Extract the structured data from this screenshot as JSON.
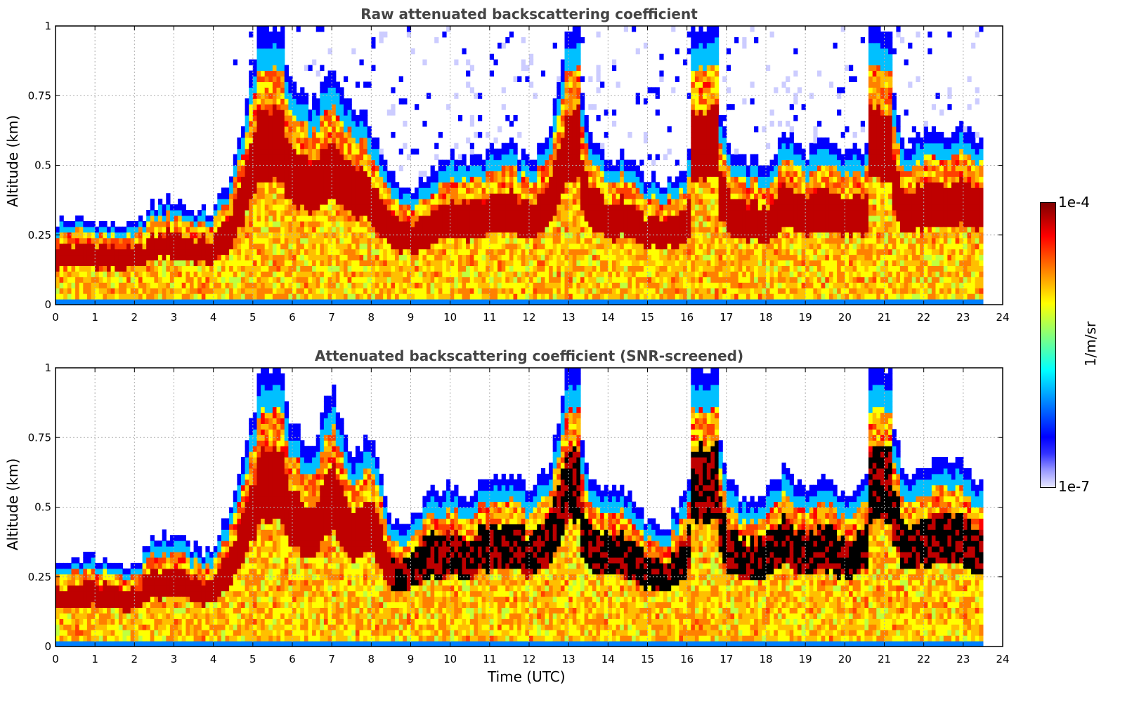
{
  "chart_data": [
    {
      "type": "heatmap",
      "title": "Raw attenuated backscattering coefficient",
      "xlabel": "",
      "ylabel": "Altitude (km)",
      "xlim": [
        0,
        24
      ],
      "ylim": [
        0,
        1
      ],
      "xticks": [
        "0",
        "1",
        "2",
        "3",
        "4",
        "5",
        "6",
        "7",
        "8",
        "9",
        "10",
        "11",
        "12",
        "13",
        "14",
        "15",
        "16",
        "17",
        "18",
        "19",
        "20",
        "21",
        "22",
        "23",
        "24"
      ],
      "yticks": [
        "0",
        "0.25",
        "0.5",
        "0.75",
        "1"
      ],
      "grid": true,
      "data_end_time": 23.5,
      "boundary_layer_top_km": [
        [
          0.0,
          0.3
        ],
        [
          0.5,
          0.31
        ],
        [
          1.0,
          0.3
        ],
        [
          1.5,
          0.29
        ],
        [
          2.0,
          0.28
        ],
        [
          2.5,
          0.36
        ],
        [
          3.0,
          0.38
        ],
        [
          3.5,
          0.34
        ],
        [
          4.0,
          0.34
        ],
        [
          4.5,
          0.48
        ],
        [
          5.0,
          0.85
        ],
        [
          5.5,
          1.0
        ],
        [
          6.0,
          0.8
        ],
        [
          6.5,
          0.72
        ],
        [
          7.0,
          0.85
        ],
        [
          7.5,
          0.72
        ],
        [
          8.0,
          0.65
        ],
        [
          8.5,
          0.45
        ],
        [
          9.0,
          0.42
        ],
        [
          9.5,
          0.45
        ],
        [
          10.0,
          0.55
        ],
        [
          10.5,
          0.52
        ],
        [
          11.0,
          0.55
        ],
        [
          11.5,
          0.58
        ],
        [
          12.0,
          0.52
        ],
        [
          12.5,
          0.6
        ],
        [
          13.0,
          1.0
        ],
        [
          13.5,
          0.65
        ],
        [
          14.0,
          0.52
        ],
        [
          14.5,
          0.55
        ],
        [
          15.0,
          0.45
        ],
        [
          15.5,
          0.44
        ],
        [
          16.0,
          0.5
        ],
        [
          16.5,
          1.0
        ],
        [
          17.0,
          0.58
        ],
        [
          17.5,
          0.52
        ],
        [
          18.0,
          0.5
        ],
        [
          18.5,
          0.62
        ],
        [
          19.0,
          0.55
        ],
        [
          19.5,
          0.58
        ],
        [
          20.0,
          0.55
        ],
        [
          20.5,
          0.55
        ],
        [
          21.0,
          1.0
        ],
        [
          21.5,
          0.55
        ],
        [
          22.0,
          0.62
        ],
        [
          22.5,
          0.6
        ],
        [
          23.0,
          0.65
        ],
        [
          23.5,
          0.58
        ]
      ],
      "high_peaks_hours": [
        5.3,
        5.6,
        13.1,
        16.3,
        16.6,
        20.8,
        21.0
      ]
    },
    {
      "type": "heatmap",
      "title": "Attenuated backscattering coefficient (SNR-screened)",
      "xlabel": "Time (UTC)",
      "ylabel": "Altitude (km)",
      "xlim": [
        0,
        24
      ],
      "ylim": [
        0,
        1
      ],
      "xticks": [
        "0",
        "1",
        "2",
        "3",
        "4",
        "5",
        "6",
        "7",
        "8",
        "9",
        "10",
        "11",
        "12",
        "13",
        "14",
        "15",
        "16",
        "17",
        "18",
        "19",
        "20",
        "21",
        "22",
        "23",
        "24"
      ],
      "yticks": [
        "0",
        "0.25",
        "0.5",
        "0.75",
        "1"
      ],
      "grid": true,
      "data_end_time": 23.5,
      "boundary_layer_top_km": [
        [
          0.0,
          0.3
        ],
        [
          0.5,
          0.33
        ],
        [
          1.0,
          0.32
        ],
        [
          1.5,
          0.3
        ],
        [
          2.0,
          0.28
        ],
        [
          2.5,
          0.4
        ],
        [
          3.0,
          0.4
        ],
        [
          3.5,
          0.35
        ],
        [
          4.0,
          0.35
        ],
        [
          4.5,
          0.52
        ],
        [
          5.0,
          0.85
        ],
        [
          5.5,
          1.0
        ],
        [
          6.0,
          0.8
        ],
        [
          6.5,
          0.7
        ],
        [
          7.0,
          0.95
        ],
        [
          7.5,
          0.65
        ],
        [
          8.0,
          0.78
        ],
        [
          8.5,
          0.45
        ],
        [
          9.0,
          0.45
        ],
        [
          9.5,
          0.55
        ],
        [
          10.0,
          0.58
        ],
        [
          10.5,
          0.55
        ],
        [
          11.0,
          0.62
        ],
        [
          11.5,
          0.62
        ],
        [
          12.0,
          0.56
        ],
        [
          12.5,
          0.64
        ],
        [
          13.0,
          1.0
        ],
        [
          13.5,
          0.6
        ],
        [
          14.0,
          0.58
        ],
        [
          14.5,
          0.55
        ],
        [
          15.0,
          0.45
        ],
        [
          15.5,
          0.44
        ],
        [
          16.0,
          0.55
        ],
        [
          16.5,
          1.0
        ],
        [
          17.0,
          0.6
        ],
        [
          17.5,
          0.52
        ],
        [
          18.0,
          0.55
        ],
        [
          18.5,
          0.65
        ],
        [
          19.0,
          0.55
        ],
        [
          19.5,
          0.6
        ],
        [
          20.0,
          0.55
        ],
        [
          20.5,
          0.6
        ],
        [
          21.0,
          1.0
        ],
        [
          21.5,
          0.6
        ],
        [
          22.0,
          0.65
        ],
        [
          22.5,
          0.68
        ],
        [
          23.0,
          0.65
        ],
        [
          23.5,
          0.58
        ]
      ],
      "high_peaks_hours": [
        5.3,
        5.6,
        13.1,
        16.3,
        16.6,
        20.8,
        21.0
      ]
    }
  ],
  "colorbar": {
    "label": "1/m/sr",
    "max_label": "1e-4",
    "min_label": "1e-7",
    "colors": [
      "#e8e8ff",
      "#9999ff",
      "#3333ff",
      "#0000ff",
      "#0040ff",
      "#0080ff",
      "#00c0ff",
      "#00ffff",
      "#40ffbf",
      "#80ff80",
      "#bfff40",
      "#ffff00",
      "#ffbf00",
      "#ff8000",
      "#ff4000",
      "#ff0000",
      "#bf0000",
      "#800000"
    ]
  },
  "screened_color": "#000000"
}
